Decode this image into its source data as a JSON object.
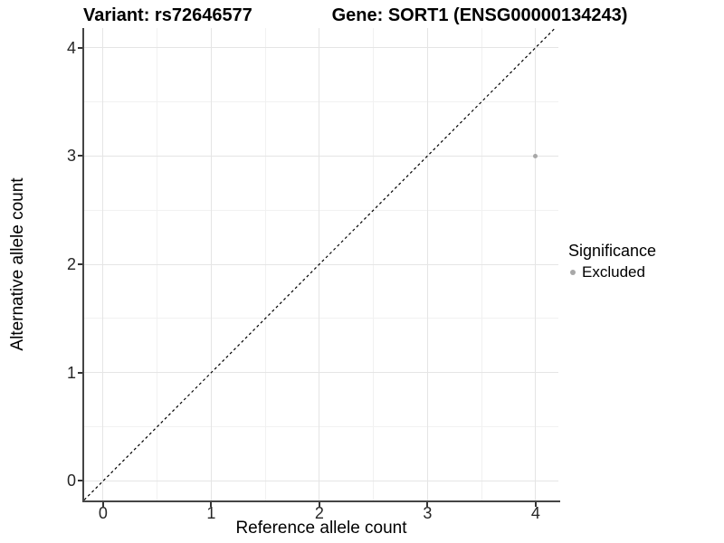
{
  "header": {
    "variant_title": "Variant: rs72646577",
    "gene_title": "Gene: SORT1 (ENSG00000134243)"
  },
  "chart_data": {
    "type": "scatter",
    "title": "Variant: rs72646577 | Gene: SORT1 (ENSG00000134243)",
    "xlabel": "Reference allele count",
    "ylabel": "Alternative allele count",
    "xlim": [
      -0.175,
      4.21
    ],
    "ylim": [
      -0.18,
      4.18
    ],
    "x_ticks": [
      0,
      1,
      2,
      3,
      4
    ],
    "y_ticks": [
      0,
      1,
      2,
      3,
      4
    ],
    "x_minor_ticks": [
      0.5,
      1.5,
      2.5,
      3.5
    ],
    "y_minor_ticks": [
      0.5,
      1.5,
      2.5,
      3.5
    ],
    "grid": true,
    "reference_line": {
      "kind": "identity-diagonal",
      "style": "dashed",
      "color": "#000000"
    },
    "series": [
      {
        "name": "Excluded",
        "points": [
          {
            "x": 4,
            "y": 3
          }
        ],
        "color": "#a8a8a8"
      }
    ],
    "legend": {
      "title": "Significance",
      "position": "right",
      "entries": [
        {
          "label": "Excluded",
          "color": "#a8a8a8"
        }
      ]
    }
  },
  "colors": {
    "background": "#ffffff",
    "grid_major": "#e5e5e5",
    "grid_minor": "#f1f1f1",
    "axis_line": "#454545",
    "point": "#a8a8a8",
    "reference_line": "#000000"
  }
}
